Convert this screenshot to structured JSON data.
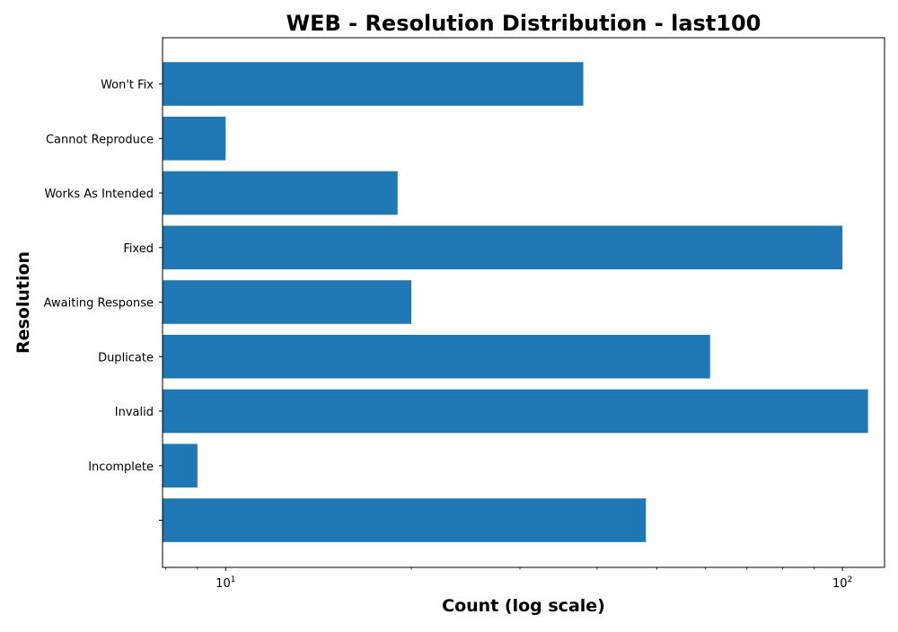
{
  "chart_data": {
    "type": "bar",
    "orientation": "horizontal",
    "title": "WEB - Resolution Distribution - last100",
    "xlabel": "Count (log scale)",
    "ylabel": "Resolution",
    "x_scale": "log",
    "xlim": [
      7.9,
      117
    ],
    "x_ticks": [
      {
        "base": "10",
        "exp": "1",
        "value": 10
      },
      {
        "base": "10",
        "exp": "2",
        "value": 100
      }
    ],
    "categories": [
      "",
      "Incomplete",
      "Invalid",
      "Duplicate",
      "Awaiting Response",
      "Fixed",
      "Works As Intended",
      "Cannot Reproduce",
      "Won't Fix"
    ],
    "values": [
      48,
      9,
      110,
      61,
      20,
      100,
      19,
      10,
      38
    ],
    "bar_color": "#1f77b4",
    "grid": false,
    "legend": "none"
  }
}
